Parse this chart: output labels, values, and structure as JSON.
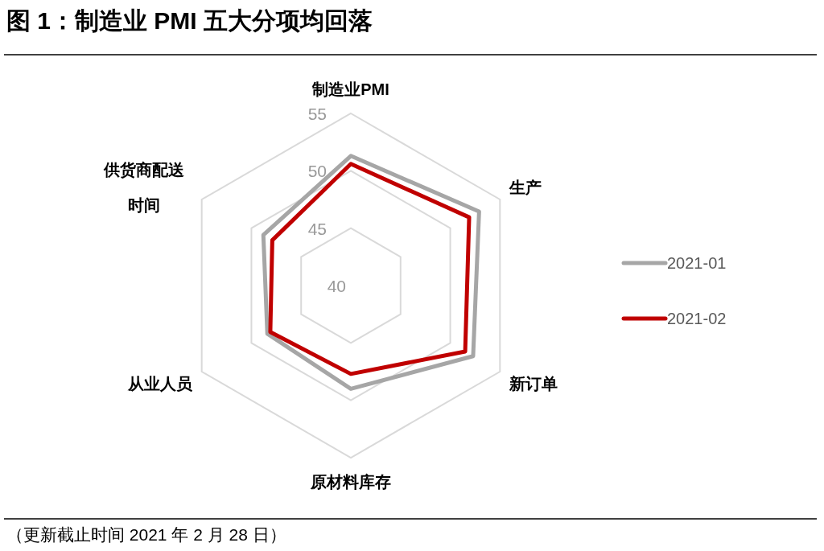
{
  "chart_data": {
    "type": "radar",
    "title": "图 1：制造业 PMI 五大分项均回落",
    "categories": [
      "制造业PMI",
      "生产",
      "新订单",
      "原材料库存",
      "从业人员",
      "供货商配送时间"
    ],
    "series": [
      {
        "name": "2021-01",
        "color": "#a6a6a6",
        "values": [
          51.3,
          52.9,
          52.3,
          49.0,
          48.4,
          48.8
        ]
      },
      {
        "name": "2021-02",
        "color": "#c00000",
        "values": [
          50.6,
          51.9,
          51.5,
          47.7,
          48.1,
          47.9
        ]
      }
    ],
    "ylim": [
      40,
      55
    ],
    "yticks": [
      40,
      45,
      50,
      55
    ],
    "grid": true,
    "legend": "right",
    "annotations": [
      "（更新截止时间 2021 年 2 月 28 日）"
    ]
  }
}
